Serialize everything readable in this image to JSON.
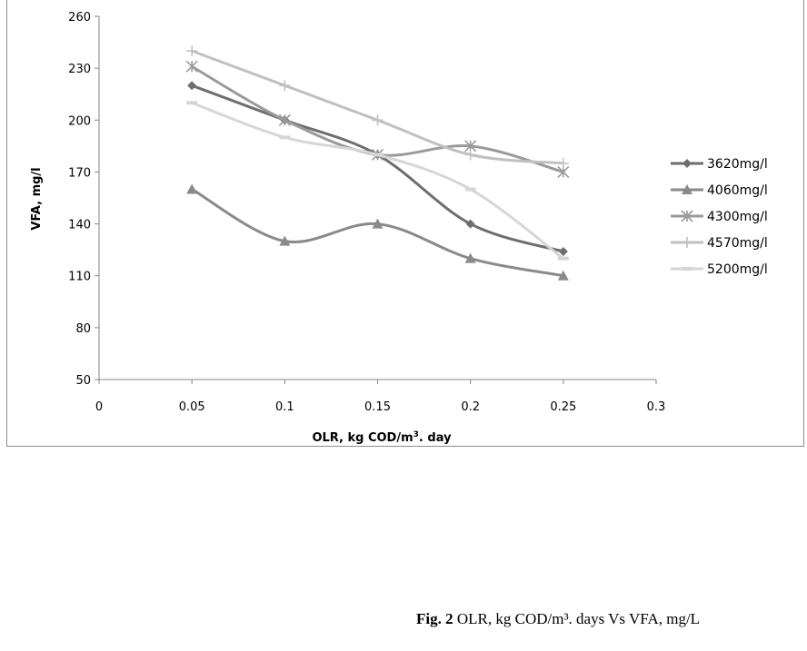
{
  "chart_data": {
    "type": "line",
    "xlabel_main": "OLR, kg COD/m",
    "xlabel_sup": "3",
    "xlabel_tail": ". day",
    "ylabel": "VFA, mg/l",
    "xlim": [
      0,
      0.3
    ],
    "ylim": [
      50,
      260
    ],
    "x_ticks": [
      "0",
      "0.05",
      "0.1",
      "0.15",
      "0.2",
      "0.25",
      "0.3"
    ],
    "x_tick_values": [
      0,
      0.05,
      0.1,
      0.15,
      0.2,
      0.25,
      0.3
    ],
    "y_ticks": [
      "50",
      "80",
      "110",
      "140",
      "170",
      "200",
      "230",
      "260"
    ],
    "y_tick_values": [
      50,
      80,
      110,
      140,
      170,
      200,
      230,
      260
    ],
    "grid": false,
    "legend_position": "right",
    "series": [
      {
        "name": "3620mg/l",
        "marker": "diamond",
        "color": "#6e6e6e",
        "x": [
          0.05,
          0.1,
          0.15,
          0.2,
          0.25
        ],
        "y": [
          220,
          200,
          180,
          140,
          124
        ]
      },
      {
        "name": "4060mg/l",
        "marker": "triangle",
        "color": "#8a8a8a",
        "x": [
          0.05,
          0.1,
          0.15,
          0.2,
          0.25
        ],
        "y": [
          160,
          130,
          140,
          120,
          110
        ]
      },
      {
        "name": "4300mg/l",
        "marker": "star",
        "color": "#9a9a9a",
        "x": [
          0.05,
          0.1,
          0.15,
          0.2,
          0.25
        ],
        "y": [
          231,
          200,
          180,
          185,
          170
        ]
      },
      {
        "name": "4570mg/l",
        "marker": "plus",
        "color": "#c0c0c0",
        "x": [
          0.05,
          0.1,
          0.15,
          0.2,
          0.25
        ],
        "y": [
          240,
          220,
          200,
          180,
          175
        ]
      },
      {
        "name": "5200mg/l",
        "marker": "dash",
        "color": "#d6d6d6",
        "x": [
          0.05,
          0.1,
          0.15,
          0.2,
          0.25
        ],
        "y": [
          210,
          190,
          180,
          160,
          120
        ]
      }
    ]
  },
  "caption": {
    "label": "Fig. 2",
    "text": " OLR, kg COD/m³. days Vs VFA, mg/L"
  }
}
